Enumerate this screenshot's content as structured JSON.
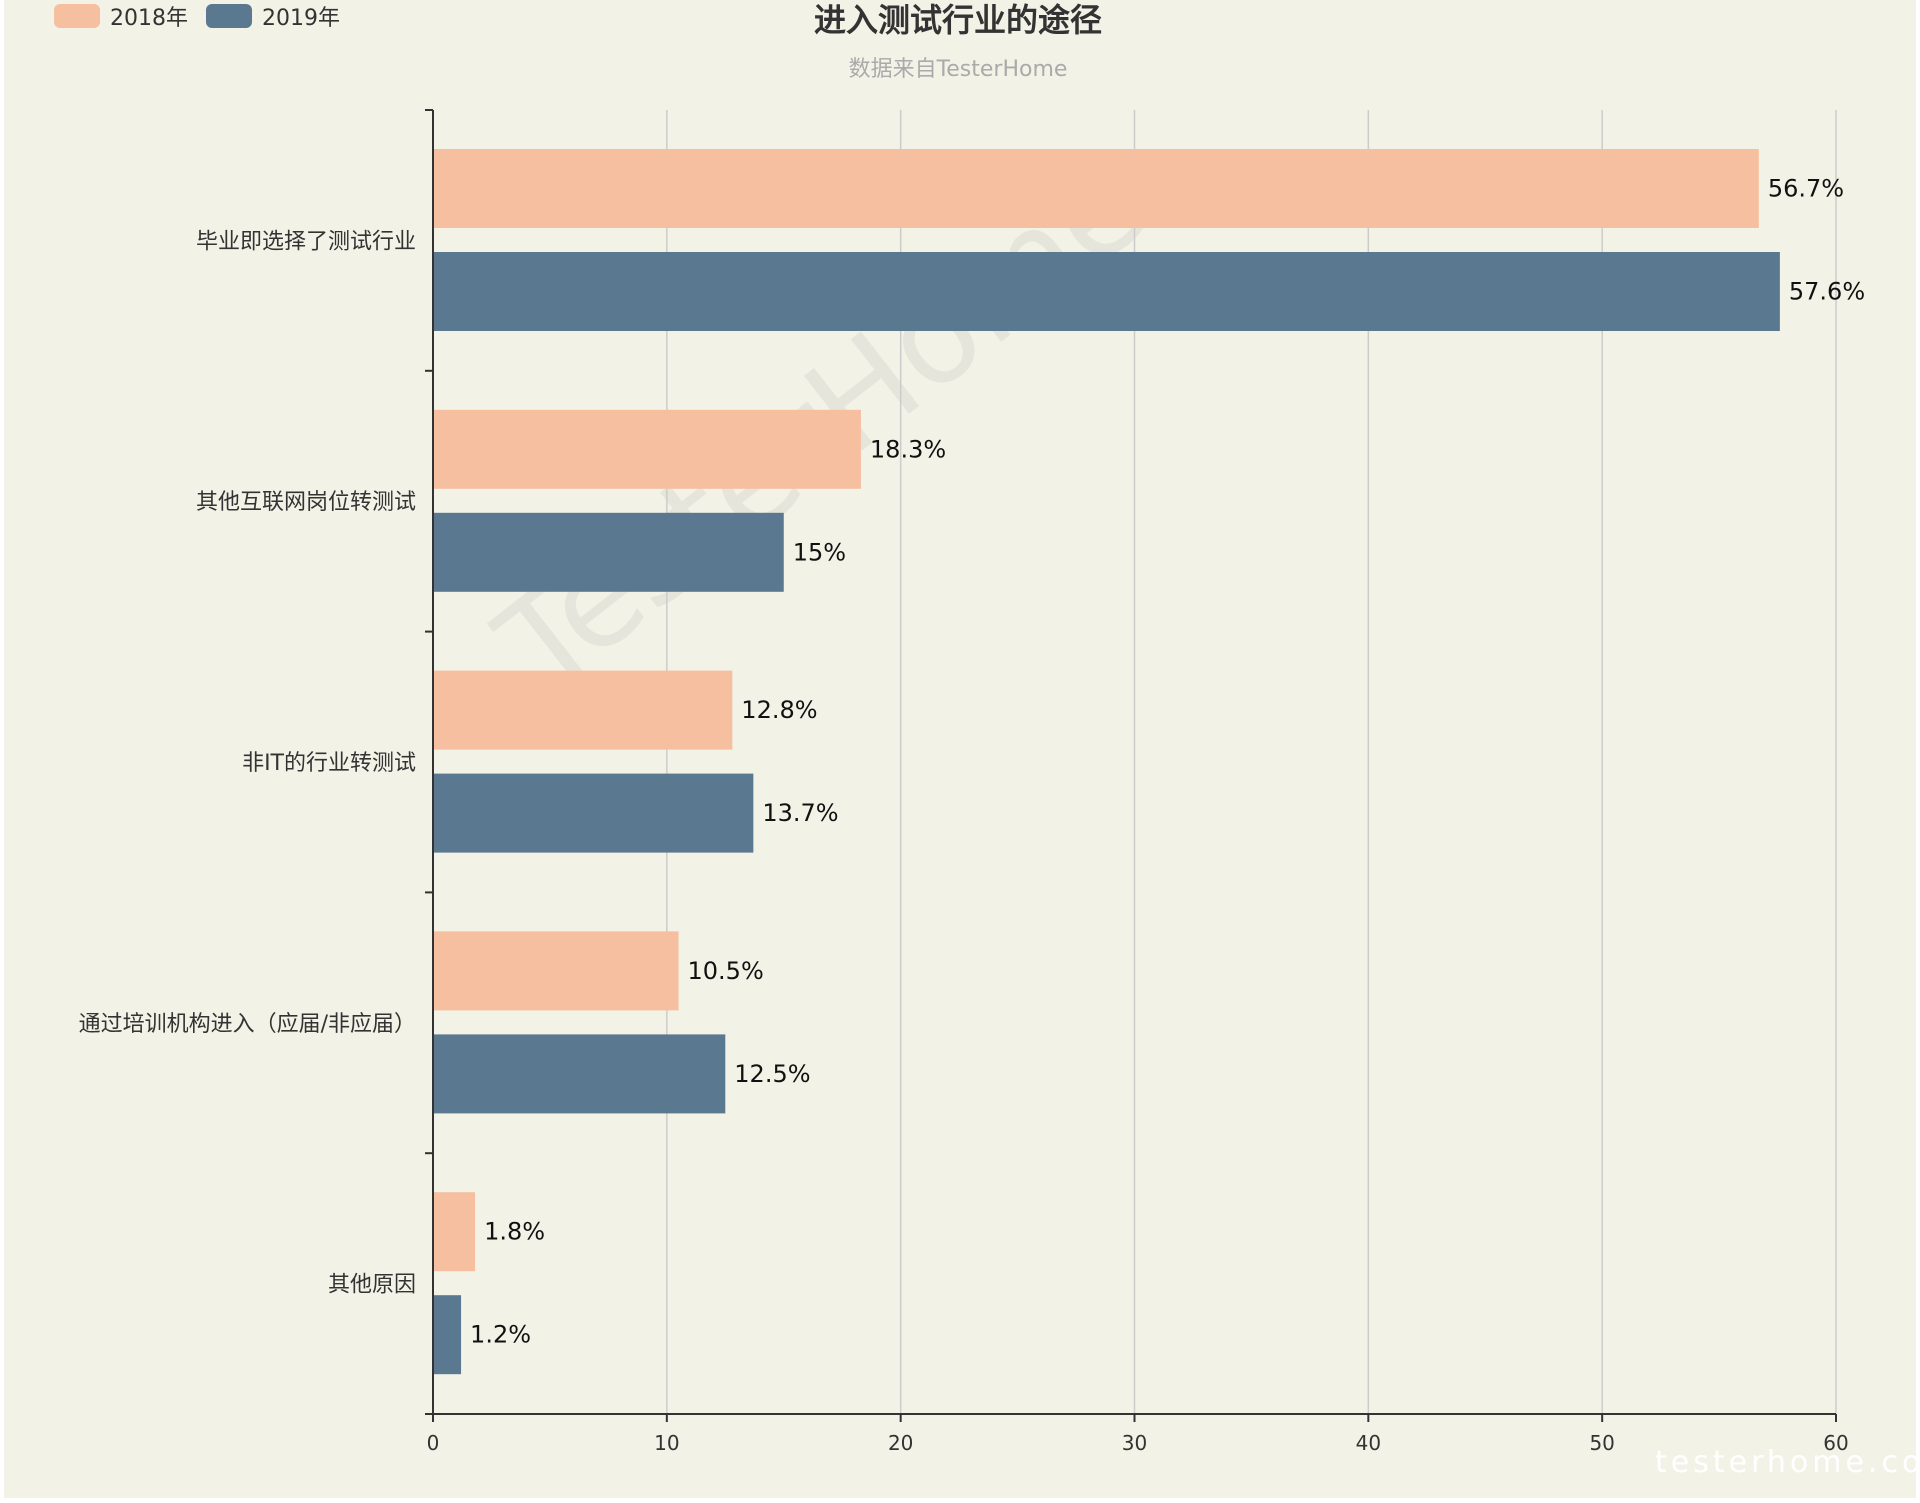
{
  "chart_data": {
    "type": "bar",
    "orientation": "horizontal",
    "title": "进入测试行业的途径",
    "subtitle": "数据来自TesterHome",
    "categories": [
      "毕业即选择了测试行业",
      "其他互联网岗位转测试",
      "非IT的行业转测试",
      "通过培训机构进入（应届/非应届）",
      "其他原因"
    ],
    "series": [
      {
        "name": "2018年",
        "color": "#f6bfa0",
        "values": [
          56.7,
          18.3,
          12.8,
          10.5,
          1.8
        ],
        "labels": [
          "56.7%",
          "18.3%",
          "12.8%",
          "10.5%",
          "1.8%"
        ]
      },
      {
        "name": "2019年",
        "color": "#5b7891",
        "values": [
          57.6,
          15,
          13.7,
          12.5,
          1.2
        ],
        "labels": [
          "57.6%",
          "15%",
          "13.7%",
          "12.5%",
          "1.2%"
        ]
      }
    ],
    "xlim": [
      0,
      60
    ],
    "xticks": [
      "0",
      "10",
      "20",
      "30",
      "40",
      "50",
      "60"
    ],
    "grid": true,
    "legend": "top-left"
  },
  "watermark": "TesterHome",
  "brand": "testerhome.com",
  "colors": {
    "background": "#f3f2e7",
    "grid": "#cccccc",
    "axis": "#333333"
  }
}
